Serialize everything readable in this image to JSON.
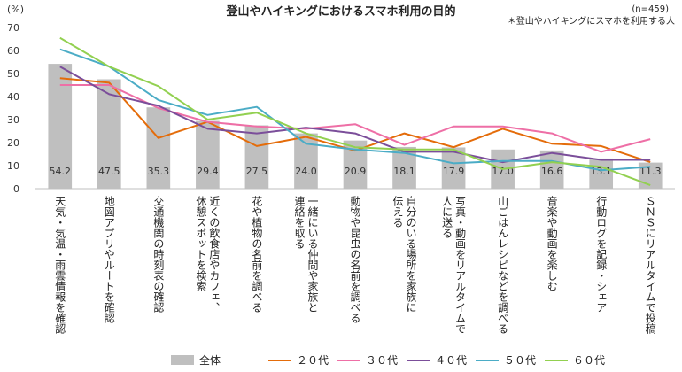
{
  "chart_data": {
    "type": "bar",
    "title": "登山やハイキングにおけるスマホ利用の目的",
    "note_n": "(n=459)",
    "note": "＊登山やハイキングにスマホを利用する人",
    "ylabel": "(%)",
    "ylim": [
      0,
      70
    ],
    "yticks": [
      0,
      10,
      20,
      30,
      40,
      50,
      60,
      70
    ],
    "grid": false,
    "legend_position": "bottom",
    "categories": [
      "天気・気温・雨雲情報を確認",
      "地図アプリやルートを確認",
      "交通機関の時刻表の確認",
      "近くの飲食店やカフェ、休憩スポットを検索",
      "花や植物の名前を調べる",
      "一緒にいる仲間や家族と連絡を取る",
      "動物や昆虫の名前を調べる",
      "自分のいる場所を家族に伝える",
      "写真・動画をリアルタイムで人に送る",
      "山ごはんレシピなどを調べる",
      "音楽や動画を楽しむ",
      "行動ログを記録・シェア",
      "ＳＮＳにリアルタイムで投稿"
    ],
    "category_lines": [
      [
        "天気・気温・雨雲情報を確認"
      ],
      [
        "地図アプリやルートを確認"
      ],
      [
        "交通機関の時刻表の確認"
      ],
      [
        "近くの飲食店やカフェ、",
        "休憩スポットを検索"
      ],
      [
        "花や植物の名前を調べる"
      ],
      [
        "一緒にいる仲間や家族と",
        "連絡を取る"
      ],
      [
        "動物や昆虫の名前を調べる"
      ],
      [
        "自分のいる場所を家族に",
        "伝える"
      ],
      [
        "写真・動画をリアルタイムで",
        "人に送る"
      ],
      [
        "山ごはんレシピなどを調べる"
      ],
      [
        "音楽や動画を楽しむ"
      ],
      [
        "行動ログを記録・シェア"
      ],
      [
        "ＳＮＳにリアルタイムで投稿"
      ]
    ],
    "bar_series": {
      "name": "全体",
      "color": "#bfbfbf",
      "values": [
        54.2,
        47.5,
        35.3,
        29.4,
        27.5,
        24.0,
        20.9,
        18.1,
        17.9,
        17.0,
        16.6,
        13.1,
        11.3
      ],
      "labels": [
        "54.2",
        "47.5",
        "35.3",
        "29.4",
        "27.5",
        "24.0",
        "20.9",
        "18.1",
        "17.9",
        "17.0",
        "16.6",
        "13.1",
        "11.3"
      ]
    },
    "series": [
      {
        "name": "２０代",
        "color": "#e46c0a",
        "values": [
          48,
          46,
          22,
          29,
          18.5,
          22.5,
          16.5,
          24,
          18,
          26,
          19.5,
          18.5,
          11.5
        ]
      },
      {
        "name": "３０代",
        "color": "#ee6fa6",
        "values": [
          45,
          45,
          35,
          29,
          27,
          26,
          28,
          19,
          27,
          27,
          24,
          16,
          21.5
        ]
      },
      {
        "name": "４０代",
        "color": "#7b4e9a",
        "values": [
          53,
          41,
          36,
          26,
          24,
          26.5,
          24,
          16,
          16,
          11.5,
          15.5,
          12.5,
          12.5
        ]
      },
      {
        "name": "５０代",
        "color": "#4bacc6",
        "values": [
          60.5,
          53,
          38.5,
          32,
          35.5,
          19.5,
          17,
          15.5,
          11,
          12,
          12,
          8,
          9.5
        ]
      },
      {
        "name": "６０代",
        "color": "#92d050",
        "values": [
          65.5,
          53,
          44.5,
          30,
          33,
          24,
          18,
          17,
          17,
          8.5,
          11.5,
          9.5,
          1.5
        ]
      }
    ]
  }
}
